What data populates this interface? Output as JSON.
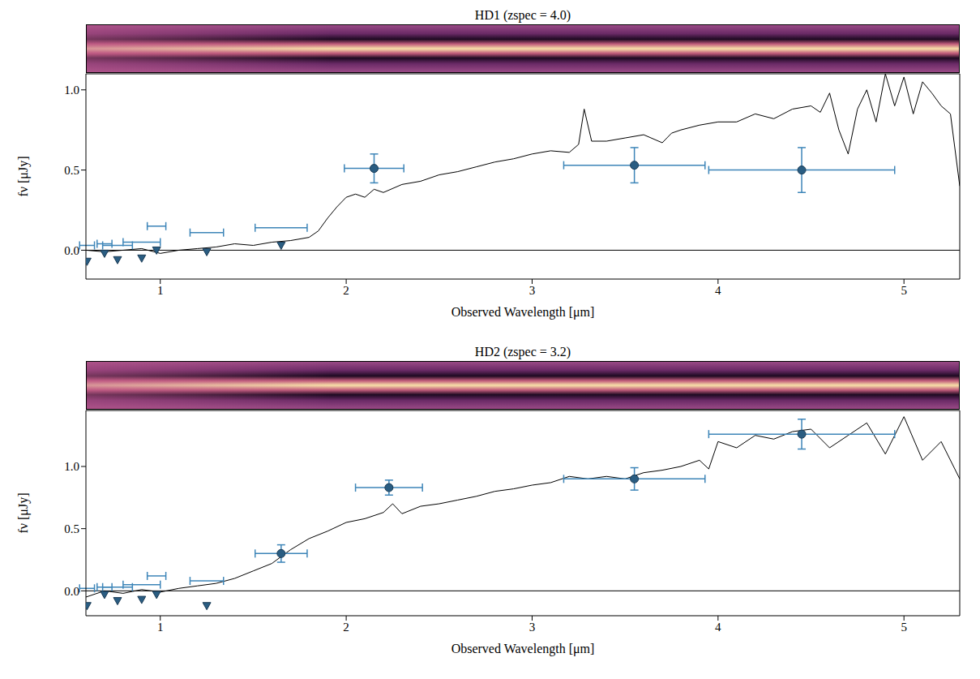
{
  "chart_data": [
    {
      "type": "line",
      "title": "HD1 (zspec = 4.0)",
      "x_label": "Observed Wavelength [μm]",
      "y_label": "fν [μJy]",
      "xlim": [
        0.6,
        5.3
      ],
      "xticks": [
        1,
        2,
        3,
        4,
        5
      ],
      "ylim": [
        -0.18,
        1.1
      ],
      "yticks": [
        {
          "value": 0,
          "label": "0.0"
        },
        {
          "value": 0.5,
          "label": "0.5"
        },
        {
          "value": 1,
          "label": "1.0"
        }
      ],
      "spectrum": {
        "color": "#000000",
        "x": [
          0.6,
          0.7,
          0.8,
          0.9,
          1.0,
          1.1,
          1.2,
          1.3,
          1.4,
          1.5,
          1.6,
          1.7,
          1.8,
          1.85,
          1.9,
          1.95,
          2.0,
          2.05,
          2.1,
          2.15,
          2.2,
          2.3,
          2.4,
          2.5,
          2.6,
          2.7,
          2.8,
          2.9,
          3.0,
          3.1,
          3.2,
          3.25,
          3.28,
          3.32,
          3.4,
          3.5,
          3.6,
          3.7,
          3.75,
          3.8,
          3.9,
          4.0,
          4.1,
          4.2,
          4.3,
          4.4,
          4.5,
          4.55,
          4.6,
          4.65,
          4.7,
          4.75,
          4.8,
          4.85,
          4.9,
          4.95,
          5.0,
          5.05,
          5.1,
          5.15,
          5.2,
          5.25,
          5.3
        ],
        "values": [
          0,
          -0.01,
          0.0,
          0.01,
          -0.02,
          0.0,
          0.01,
          0.02,
          0.04,
          0.03,
          0.05,
          0.06,
          0.08,
          0.12,
          0.2,
          0.27,
          0.33,
          0.35,
          0.33,
          0.38,
          0.36,
          0.41,
          0.43,
          0.47,
          0.49,
          0.52,
          0.55,
          0.57,
          0.6,
          0.62,
          0.61,
          0.66,
          0.88,
          0.68,
          0.68,
          0.7,
          0.72,
          0.67,
          0.73,
          0.75,
          0.78,
          0.8,
          0.8,
          0.85,
          0.82,
          0.88,
          0.9,
          0.86,
          0.98,
          0.75,
          0.6,
          0.88,
          1.0,
          0.8,
          1.1,
          0.9,
          1.08,
          0.85,
          1.05,
          0.98,
          0.9,
          0.85,
          0.4
        ]
      },
      "photometry": {
        "color": "#2a5d82",
        "marker": "circle",
        "x": [
          2.15,
          3.55,
          4.45
        ],
        "values": [
          0.51,
          0.53,
          0.5
        ],
        "xerr": [
          0.16,
          0.38,
          0.5
        ],
        "yerr": [
          0.09,
          0.11,
          0.14
        ]
      },
      "upper_limits": {
        "color": "#2a5d82",
        "marker": "triangle-down",
        "x": [
          0.606,
          0.7,
          0.77,
          0.9,
          0.98,
          1.25,
          1.65
        ],
        "values": [
          -0.07,
          -0.02,
          -0.06,
          -0.05,
          0.0,
          -0.01,
          0.03
        ],
        "limits": [
          0.03,
          0.04,
          0.03,
          0.05,
          0.15,
          0.11,
          0.14
        ],
        "xerr": [
          0.04,
          0.04,
          0.08,
          0.1,
          0.05,
          0.09,
          0.14
        ]
      }
    },
    {
      "type": "line",
      "title": "HD2 (zspec = 3.2)",
      "x_label": "Observed Wavelength [μm]",
      "y_label": "fν [μJy]",
      "xlim": [
        0.6,
        5.3
      ],
      "xticks": [
        1,
        2,
        3,
        4,
        5
      ],
      "ylim": [
        -0.2,
        1.45
      ],
      "yticks": [
        {
          "value": 0,
          "label": "0.0"
        },
        {
          "value": 0.5,
          "label": "0.5"
        },
        {
          "value": 1,
          "label": "1.0"
        }
      ],
      "spectrum": {
        "color": "#000000",
        "x": [
          0.6,
          0.7,
          0.8,
          0.9,
          1.0,
          1.1,
          1.2,
          1.3,
          1.4,
          1.5,
          1.6,
          1.7,
          1.8,
          1.9,
          2.0,
          2.1,
          2.2,
          2.25,
          2.3,
          2.4,
          2.5,
          2.6,
          2.7,
          2.8,
          2.9,
          3.0,
          3.1,
          3.2,
          3.3,
          3.4,
          3.5,
          3.6,
          3.7,
          3.8,
          3.9,
          3.95,
          4.0,
          4.1,
          4.2,
          4.3,
          4.4,
          4.5,
          4.6,
          4.7,
          4.8,
          4.9,
          5.0,
          5.1,
          5.2,
          5.3
        ],
        "values": [
          -0.05,
          0.0,
          -0.02,
          0.01,
          -0.01,
          0.02,
          0.04,
          0.06,
          0.1,
          0.16,
          0.22,
          0.33,
          0.42,
          0.48,
          0.55,
          0.58,
          0.63,
          0.7,
          0.62,
          0.68,
          0.7,
          0.73,
          0.76,
          0.8,
          0.82,
          0.85,
          0.87,
          0.92,
          0.9,
          0.92,
          0.9,
          0.95,
          0.97,
          1.0,
          1.05,
          0.98,
          1.2,
          1.15,
          1.25,
          1.22,
          1.28,
          1.3,
          1.15,
          1.25,
          1.35,
          1.1,
          1.4,
          1.05,
          1.2,
          0.9
        ]
      },
      "photometry": {
        "color": "#2a5d82",
        "marker": "circle",
        "x": [
          1.65,
          2.23,
          3.55,
          4.45
        ],
        "values": [
          0.3,
          0.83,
          0.9,
          1.26
        ],
        "xerr": [
          0.14,
          0.18,
          0.38,
          0.5
        ],
        "yerr": [
          0.07,
          0.06,
          0.09,
          0.12
        ]
      },
      "upper_limits": {
        "color": "#2a5d82",
        "marker": "triangle-down",
        "x": [
          0.606,
          0.7,
          0.77,
          0.9,
          0.98,
          1.25
        ],
        "values": [
          -0.12,
          -0.03,
          -0.08,
          -0.07,
          -0.03,
          -0.12
        ],
        "limits": [
          0.02,
          0.03,
          0.03,
          0.05,
          0.12,
          0.08
        ],
        "xerr": [
          0.04,
          0.04,
          0.08,
          0.1,
          0.05,
          0.09
        ]
      }
    }
  ]
}
